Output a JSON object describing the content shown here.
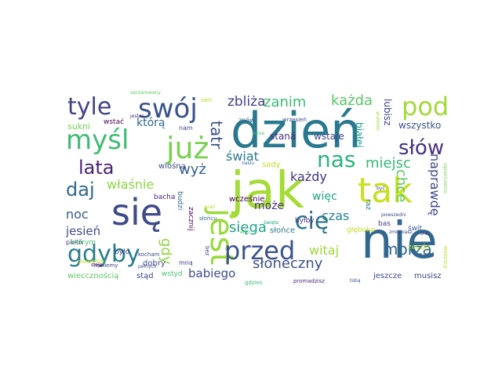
{
  "words": [
    {
      "text": "dzień",
      "color": "#2a788e"
    },
    {
      "text": "jak",
      "color": "#a5db36"
    },
    {
      "text": "nie",
      "color": "#31668e"
    },
    {
      "text": "się",
      "color": "#3e4a89"
    },
    {
      "text": "jest",
      "color": "#9ad93c"
    },
    {
      "text": "tak",
      "color": "#c7e020"
    },
    {
      "text": "już",
      "color": "#79d151"
    },
    {
      "text": "swój",
      "color": "#3b528b"
    },
    {
      "text": "myśl",
      "color": "#3fbc73"
    },
    {
      "text": "tyle",
      "color": "#414487"
    },
    {
      "text": "pod",
      "color": "#a2da37"
    },
    {
      "text": "słów",
      "color": "#46327e"
    },
    {
      "text": "nas",
      "color": "#2db27d"
    },
    {
      "text": "lata",
      "color": "#482475"
    },
    {
      "text": "daj",
      "color": "#31688e"
    },
    {
      "text": "cię",
      "color": "#2c728e"
    },
    {
      "text": "przed",
      "color": "#3b528b"
    },
    {
      "text": "gdyby",
      "color": "#287d8e"
    },
    {
      "text": "gdy",
      "color": "#8fd744"
    },
    {
      "text": "tatr",
      "color": "#3b528b"
    },
    {
      "text": "zbliża",
      "color": "#423f85"
    },
    {
      "text": "zanim",
      "color": "#3dbc74"
    },
    {
      "text": "każda",
      "color": "#58c765"
    },
    {
      "text": "którą",
      "color": "#31688e"
    },
    {
      "text": "wyż",
      "color": "#34618d"
    },
    {
      "text": "świat",
      "color": "#2a788e"
    },
    {
      "text": "miejsc",
      "color": "#38b977"
    },
    {
      "text": "właśnie",
      "color": "#8bd646"
    },
    {
      "text": "noc",
      "color": "#38588c"
    },
    {
      "text": "jesień",
      "color": "#3e4989"
    },
    {
      "text": "sięga",
      "color": "#1fa187"
    },
    {
      "text": "każdy",
      "color": "#463480"
    },
    {
      "text": "czas",
      "color": "#25838e"
    },
    {
      "text": "chce",
      "color": "#5ec962"
    },
    {
      "text": "naprawdę",
      "color": "#3e4a89"
    },
    {
      "text": "morza",
      "color": "#31688e"
    },
    {
      "text": "witaj",
      "color": "#9dd93b"
    },
    {
      "text": "słoneczny",
      "color": "#3b528b"
    },
    {
      "text": "może",
      "color": "#46307e"
    },
    {
      "text": "babiego",
      "color": "#3e4c8a"
    },
    {
      "text": "więc",
      "color": "#1fa187"
    },
    {
      "text": "lubisz",
      "color": "#414487"
    },
    {
      "text": "wszystko",
      "color": "#3b528b"
    },
    {
      "text": "sukni",
      "color": "#73d056"
    },
    {
      "text": "wstać",
      "color": "#440154"
    },
    {
      "text": "nam",
      "color": "#3f4788"
    },
    {
      "text": "stană",
      "color": "#46327e"
    },
    {
      "text": "wstaje",
      "color": "#3e4989"
    },
    {
      "text": "białej",
      "color": "#1f958b"
    },
    {
      "text": "wiośną",
      "color": "#3e4a89"
    },
    {
      "text": "sady",
      "color": "#c0df25"
    },
    {
      "text": "wcześnie",
      "color": "#440154"
    },
    {
      "text": "wieccznością",
      "color": "#5ec962"
    },
    {
      "text": "stąd",
      "color": "#3e4989"
    },
    {
      "text": "wstyd",
      "color": "#4ac16d"
    },
    {
      "text": "dobry",
      "color": "#3e4c8a"
    },
    {
      "text": "było",
      "color": "#414487"
    },
    {
      "text": "pieśń",
      "color": "#453781"
    },
    {
      "text": "którym",
      "color": "#4ac16d"
    },
    {
      "text": "bacha",
      "color": "#482878"
    },
    {
      "text": "budzi",
      "color": "#31688e"
    },
    {
      "text": "zacznij",
      "color": "#440154"
    },
    {
      "text": "byłby",
      "color": "#443a83"
    },
    {
      "text": "słońce",
      "color": "#2a788e"
    },
    {
      "text": "głęboka",
      "color": "#c2df23"
    },
    {
      "text": "jeszcze",
      "color": "#3e4989"
    },
    {
      "text": "musisz",
      "color": "#3f4788"
    },
    {
      "text": "bas",
      "color": "#433e85"
    },
    {
      "text": "świt",
      "color": "#365c8d"
    },
    {
      "text": "raz",
      "color": "#2a788e"
    },
    {
      "text": "zeszle",
      "color": "#b5de2b"
    },
    {
      "text": "mną",
      "color": "#3f4889"
    },
    {
      "text": "kocham",
      "color": "#3e4989"
    },
    {
      "text": "gdzies",
      "color": "#3dbc74"
    },
    {
      "text": "powolny",
      "color": "#b8de29"
    },
    {
      "text": "miniemy",
      "color": "#3f4788"
    },
    {
      "text": "znów",
      "color": "#31688e"
    },
    {
      "text": "wrzesień",
      "color": "#3e4989"
    },
    {
      "text": "mnie",
      "color": "#4ac16d"
    },
    {
      "text": "zaczarowany",
      "color": "#5ec962"
    },
    {
      "text": "sen",
      "color": "#b5de2b"
    },
    {
      "text": "jestes",
      "color": "#46327e"
    },
    {
      "text": "stoje",
      "color": "#440154"
    },
    {
      "text": "pełnych",
      "color": "#3b528b"
    },
    {
      "text": "wiatr",
      "color": "#b8de29"
    },
    {
      "text": "słońcu",
      "color": "#31688e"
    },
    {
      "text": "nasiu",
      "color": "#31688e"
    },
    {
      "text": "albo",
      "color": "#4ac16d"
    },
    {
      "text": "święto",
      "color": "#1fa187"
    },
    {
      "text": "promadzisz",
      "color": "#482878"
    },
    {
      "text": "tobą",
      "color": "#3b528b"
    },
    {
      "text": "zmieniasz",
      "color": "#433e85"
    },
    {
      "text": "powszedni",
      "color": "#3e4a89"
    },
    {
      "text": "biec",
      "color": "#414487"
    },
    {
      "text": "być",
      "color": "#3f4788"
    },
    {
      "text": "wszyscy",
      "color": "#b8de29"
    },
    {
      "text": "bez",
      "color": "#3e4a89"
    },
    {
      "text": "wiatrem",
      "color": "#9dd93b"
    },
    {
      "text": "ograniczenia",
      "color": "#73d056"
    }
  ]
}
